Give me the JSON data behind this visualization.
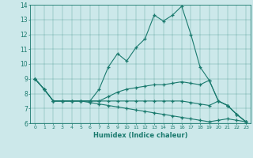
{
  "xlabel": "Humidex (Indice chaleur)",
  "background_color": "#cce8ea",
  "line_color": "#1a7a6e",
  "xlim": [
    -0.5,
    23.5
  ],
  "ylim": [
    6,
    14
  ],
  "xticks": [
    0,
    1,
    2,
    3,
    4,
    5,
    6,
    7,
    8,
    9,
    10,
    11,
    12,
    13,
    14,
    15,
    16,
    17,
    18,
    19,
    20,
    21,
    22,
    23
  ],
  "yticks": [
    6,
    7,
    8,
    9,
    10,
    11,
    12,
    13,
    14
  ],
  "line1_y": [
    9.0,
    8.3,
    7.5,
    7.5,
    7.5,
    7.5,
    7.5,
    8.3,
    9.8,
    10.7,
    10.2,
    11.1,
    11.7,
    13.3,
    12.9,
    13.3,
    13.9,
    12.0,
    9.8,
    8.9,
    7.5,
    7.2,
    6.6,
    6.1
  ],
  "line2_y": [
    9.0,
    8.3,
    7.5,
    7.5,
    7.5,
    7.5,
    7.5,
    7.5,
    7.8,
    8.1,
    8.3,
    8.4,
    8.5,
    8.6,
    8.6,
    8.7,
    8.8,
    8.7,
    8.6,
    8.9,
    7.5,
    7.2,
    6.6,
    6.1
  ],
  "line3_y": [
    9.0,
    8.3,
    7.5,
    7.5,
    7.5,
    7.5,
    7.5,
    7.5,
    7.5,
    7.5,
    7.5,
    7.5,
    7.5,
    7.5,
    7.5,
    7.5,
    7.5,
    7.4,
    7.3,
    7.2,
    7.5,
    7.2,
    6.6,
    6.1
  ],
  "line4_y": [
    9.0,
    8.3,
    7.5,
    7.5,
    7.5,
    7.5,
    7.4,
    7.3,
    7.2,
    7.1,
    7.0,
    6.9,
    6.8,
    6.7,
    6.6,
    6.5,
    6.4,
    6.3,
    6.2,
    6.1,
    6.2,
    6.3,
    6.2,
    6.1
  ]
}
